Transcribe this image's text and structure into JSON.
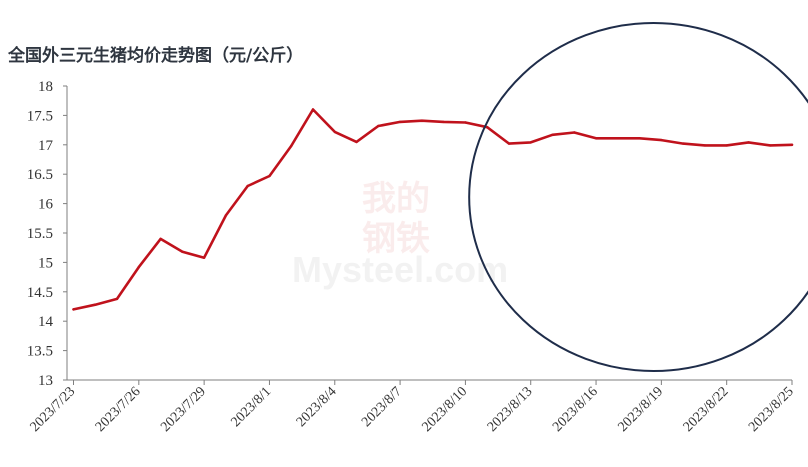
{
  "colors": {
    "line": "#c0121c",
    "circle": "#1f2d4a",
    "axis": "#7f7f7f",
    "title": "#2f3640"
  },
  "watermark": {
    "cn_top": "我的",
    "cn_bottom": "钢铁",
    "en": "Mysteel.com"
  },
  "chart_data": {
    "type": "line",
    "title": "全国外三元生猪均价走势图（元/公斤）",
    "xlabel": "",
    "ylabel": "",
    "ylim": [
      13,
      18
    ],
    "yticks": [
      "18",
      "17.5",
      "17",
      "16.5",
      "16",
      "15.5",
      "15",
      "14.5",
      "14",
      "13.5",
      "13"
    ],
    "xticks": [
      "2023/7/23",
      "2023/7/26",
      "2023/7/29",
      "2023/8/1",
      "2023/8/4",
      "2023/8/7",
      "2023/8/10",
      "2023/8/13",
      "2023/8/16",
      "2023/8/19",
      "2023/8/22",
      "2023/8/25"
    ],
    "grid": false,
    "legend": "none",
    "annotation": "ellipse highlighting 2023/8/11 – 2023/8/25",
    "series": [
      {
        "x": [
          "2023/7/23",
          "2023/7/24",
          "2023/7/25",
          "2023/7/26",
          "2023/7/27",
          "2023/7/28",
          "2023/7/29",
          "2023/7/30",
          "2023/7/31",
          "2023/8/1",
          "2023/8/2",
          "2023/8/3",
          "2023/8/4",
          "2023/8/5",
          "2023/8/6",
          "2023/8/7",
          "2023/8/8",
          "2023/8/9",
          "2023/8/10",
          "2023/8/11",
          "2023/8/12",
          "2023/8/13",
          "2023/8/14",
          "2023/8/15",
          "2023/8/16",
          "2023/8/17",
          "2023/8/18",
          "2023/8/19",
          "2023/8/20",
          "2023/8/21",
          "2023/8/22",
          "2023/8/23",
          "2023/8/24",
          "2023/8/25"
        ],
        "values": [
          14.2,
          14.28,
          14.38,
          14.92,
          15.4,
          15.18,
          15.08,
          15.8,
          16.3,
          16.47,
          16.98,
          17.6,
          17.22,
          17.05,
          17.32,
          17.39,
          17.41,
          17.39,
          17.38,
          17.3,
          17.02,
          17.04,
          17.17,
          17.21,
          17.11,
          17.11,
          17.11,
          17.08,
          17.02,
          16.99,
          16.99,
          17.04,
          16.99,
          17.0
        ]
      }
    ]
  }
}
